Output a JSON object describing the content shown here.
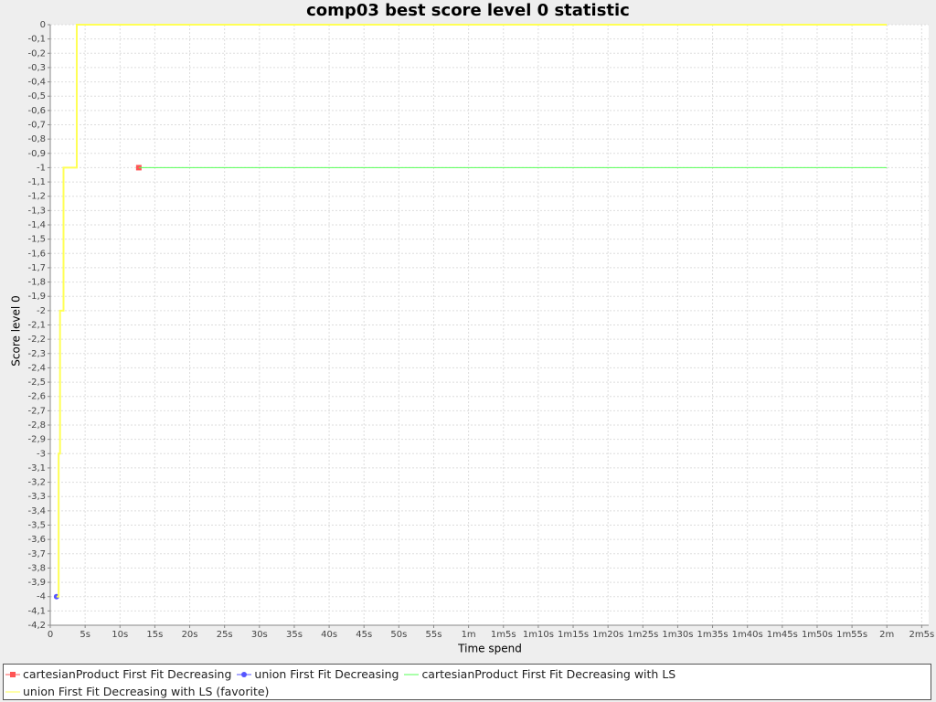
{
  "chart_data": {
    "type": "line",
    "title": "comp03 best score level 0 statistic",
    "x_label": "Time spend",
    "y_label": "Score level 0",
    "xlim": [
      0,
      126
    ],
    "ylim": [
      -4.2,
      0
    ],
    "grid": true,
    "legend": "bottom",
    "xticks": [
      0,
      {
        "value": 5,
        "label": "5s"
      },
      {
        "value": 10,
        "label": "10s"
      },
      {
        "value": 15,
        "label": "15s"
      },
      {
        "value": 20,
        "label": "20s"
      },
      {
        "value": 25,
        "label": "25s"
      },
      {
        "value": 30,
        "label": "30s"
      },
      {
        "value": 35,
        "label": "35s"
      },
      {
        "value": 40,
        "label": "40s"
      },
      {
        "value": 45,
        "label": "45s"
      },
      {
        "value": 50,
        "label": "50s"
      },
      {
        "value": 55,
        "label": "55s"
      },
      {
        "value": 60,
        "label": "1m"
      },
      {
        "value": 65,
        "label": "1m5s"
      },
      {
        "value": 70,
        "label": "1m10s"
      },
      {
        "value": 75,
        "label": "1m15s"
      },
      {
        "value": 80,
        "label": "1m20s"
      },
      {
        "value": 85,
        "label": "1m25s"
      },
      {
        "value": 90,
        "label": "1m30s"
      },
      {
        "value": 95,
        "label": "1m35s"
      },
      {
        "value": 100,
        "label": "1m40s"
      },
      {
        "value": 105,
        "label": "1m45s"
      },
      {
        "value": 110,
        "label": "1m50s"
      },
      {
        "value": 115,
        "label": "1m55s"
      },
      {
        "value": 120,
        "label": "2m"
      },
      {
        "value": 125,
        "label": "2m5s"
      }
    ],
    "yticks": [
      0,
      {
        "value": -0.1,
        "label": "-0,1"
      },
      {
        "value": -0.2,
        "label": "-0,2"
      },
      {
        "value": -0.3,
        "label": "-0,3"
      },
      {
        "value": -0.4,
        "label": "-0,4"
      },
      {
        "value": -0.5,
        "label": "-0,5"
      },
      {
        "value": -0.6,
        "label": "-0,6"
      },
      {
        "value": -0.7,
        "label": "-0,7"
      },
      {
        "value": -0.8,
        "label": "-0,8"
      },
      {
        "value": -0.9,
        "label": "-0,9"
      },
      -1,
      {
        "value": -1.1,
        "label": "-1,1"
      },
      {
        "value": -1.2,
        "label": "-1,2"
      },
      {
        "value": -1.3,
        "label": "-1,3"
      },
      {
        "value": -1.4,
        "label": "-1,4"
      },
      {
        "value": -1.5,
        "label": "-1,5"
      },
      {
        "value": -1.6,
        "label": "-1,6"
      },
      {
        "value": -1.7,
        "label": "-1,7"
      },
      {
        "value": -1.8,
        "label": "-1,8"
      },
      {
        "value": -1.9,
        "label": "-1,9"
      },
      -2,
      {
        "value": -2.1,
        "label": "-2,1"
      },
      {
        "value": -2.2,
        "label": "-2,2"
      },
      {
        "value": -2.3,
        "label": "-2,3"
      },
      {
        "value": -2.4,
        "label": "-2,4"
      },
      {
        "value": -2.5,
        "label": "-2,5"
      },
      {
        "value": -2.6,
        "label": "-2,6"
      },
      {
        "value": -2.7,
        "label": "-2,7"
      },
      {
        "value": -2.8,
        "label": "-2,8"
      },
      {
        "value": -2.9,
        "label": "-2,9"
      },
      -3,
      {
        "value": -3.1,
        "label": "-3,1"
      },
      {
        "value": -3.2,
        "label": "-3,2"
      },
      {
        "value": -3.3,
        "label": "-3,3"
      },
      {
        "value": -3.4,
        "label": "-3,4"
      },
      {
        "value": -3.5,
        "label": "-3,5"
      },
      {
        "value": -3.6,
        "label": "-3,6"
      },
      {
        "value": -3.7,
        "label": "-3,7"
      },
      {
        "value": -3.8,
        "label": "-3,8"
      },
      {
        "value": -3.9,
        "label": "-3,9"
      },
      -4,
      {
        "value": -4.1,
        "label": "-4,1"
      },
      {
        "value": -4.2,
        "label": "-4,2"
      }
    ],
    "series": [
      {
        "name": "cartesianProduct First Fit Decreasing",
        "color": "#ff5555",
        "marker": "square",
        "step": false,
        "x": [
          12.7
        ],
        "values": [
          -1
        ]
      },
      {
        "name": "union First Fit Decreasing",
        "color": "#5555ff",
        "marker": "circle",
        "step": false,
        "x": [
          0.9
        ],
        "values": [
          -4
        ]
      },
      {
        "name": "cartesianProduct First Fit Decreasing with LS",
        "color": "#55ff55",
        "marker": "none",
        "step": true,
        "x": [
          12.7,
          120
        ],
        "values": [
          -1,
          -1
        ]
      },
      {
        "name": "union First Fit Decreasing with LS (favorite)",
        "color": "#ffff55",
        "marker": "none",
        "step": true,
        "x": [
          0.9,
          1.2,
          1.4,
          1.9,
          3.8,
          120
        ],
        "values": [
          -4,
          -3,
          -2,
          -1,
          0,
          0
        ]
      }
    ]
  }
}
